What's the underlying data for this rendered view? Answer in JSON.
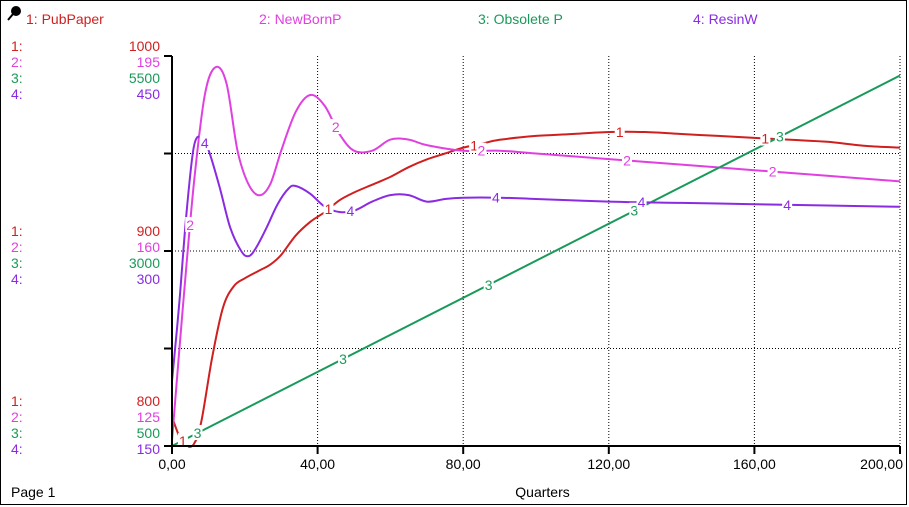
{
  "chart_data": {
    "type": "line",
    "xlabel": "Quarters",
    "page_label": "Page 1",
    "x_ticks": [
      "0,00",
      "40,00",
      "80,00",
      "120,00",
      "160,00",
      "200,00"
    ],
    "xlim": [
      0,
      200
    ],
    "grid": true,
    "series": [
      {
        "id": "1",
        "name": "PubPaper",
        "legend": "1: PubPaper",
        "color": "#d01f1f",
        "scale_labels": [
          "1000",
          "900",
          "800"
        ],
        "ylim": [
          800,
          1000
        ],
        "points": [
          [
            0,
            815
          ],
          [
            2,
            805
          ],
          [
            4,
            800
          ],
          [
            6,
            801
          ],
          [
            8,
            812
          ],
          [
            11,
            845
          ],
          [
            14,
            871
          ],
          [
            17,
            882
          ],
          [
            20,
            886
          ],
          [
            24,
            890
          ],
          [
            27,
            893
          ],
          [
            30,
            898
          ],
          [
            34,
            908
          ],
          [
            38,
            915
          ],
          [
            42,
            920
          ],
          [
            46,
            926
          ],
          [
            50,
            930
          ],
          [
            55,
            934
          ],
          [
            60,
            938
          ],
          [
            65,
            943
          ],
          [
            70,
            947
          ],
          [
            75,
            950
          ],
          [
            80,
            953
          ],
          [
            85,
            955
          ],
          [
            90,
            957
          ],
          [
            100,
            959
          ],
          [
            110,
            960
          ],
          [
            120,
            961
          ],
          [
            130,
            961
          ],
          [
            140,
            960
          ],
          [
            150,
            959
          ],
          [
            160,
            958
          ],
          [
            170,
            957
          ],
          [
            180,
            956
          ],
          [
            190,
            954
          ],
          [
            200,
            953
          ]
        ]
      },
      {
        "id": "2",
        "name": "NewBornP",
        "legend": "2: NewBornP",
        "color": "#e040e0",
        "scale_labels": [
          "195",
          "160",
          "125"
        ],
        "ylim": [
          125,
          195
        ],
        "points": [
          [
            0,
            126
          ],
          [
            3,
            150
          ],
          [
            6,
            172
          ],
          [
            9,
            188
          ],
          [
            12,
            193
          ],
          [
            15,
            190
          ],
          [
            18,
            178
          ],
          [
            21,
            172
          ],
          [
            24,
            170
          ],
          [
            27,
            172
          ],
          [
            30,
            178
          ],
          [
            34,
            185
          ],
          [
            38,
            188
          ],
          [
            42,
            186
          ],
          [
            46,
            181
          ],
          [
            50,
            178
          ],
          [
            55,
            178
          ],
          [
            60,
            180
          ],
          [
            65,
            180
          ],
          [
            70,
            179
          ],
          [
            80,
            178
          ],
          [
            90,
            178
          ],
          [
            100,
            177.5
          ],
          [
            120,
            176.5
          ],
          [
            140,
            175.5
          ],
          [
            160,
            174.5
          ],
          [
            180,
            173.5
          ],
          [
            200,
            172.5
          ]
        ]
      },
      {
        "id": "3",
        "name": "Obsolete P",
        "legend": "3: Obsolete P",
        "color": "#1a9a5a",
        "scale_labels": [
          "5500",
          "3000",
          "500"
        ],
        "ylim": [
          500,
          5500
        ],
        "points": [
          [
            0,
            500
          ],
          [
            200,
            5250
          ]
        ]
      },
      {
        "id": "4",
        "name": "ResinW",
        "legend": "4: ResinW",
        "color": "#8a2be2",
        "scale_labels": [
          "450",
          "300",
          "150"
        ],
        "ylim": [
          150,
          450
        ],
        "points": [
          [
            0,
            200
          ],
          [
            2,
            260
          ],
          [
            4,
            330
          ],
          [
            6,
            380
          ],
          [
            8,
            388
          ],
          [
            10,
            378
          ],
          [
            13,
            350
          ],
          [
            16,
            318
          ],
          [
            19,
            300
          ],
          [
            21,
            296
          ],
          [
            23,
            302
          ],
          [
            26,
            318
          ],
          [
            29,
            336
          ],
          [
            32,
            348
          ],
          [
            34,
            350
          ],
          [
            38,
            344
          ],
          [
            42,
            334
          ],
          [
            46,
            330
          ],
          [
            50,
            331
          ],
          [
            55,
            338
          ],
          [
            60,
            343
          ],
          [
            65,
            343
          ],
          [
            70,
            338
          ],
          [
            75,
            340
          ],
          [
            80,
            341
          ],
          [
            90,
            341
          ],
          [
            100,
            340
          ],
          [
            120,
            338
          ],
          [
            140,
            337
          ],
          [
            160,
            336
          ],
          [
            180,
            335
          ],
          [
            200,
            334
          ]
        ]
      }
    ]
  }
}
